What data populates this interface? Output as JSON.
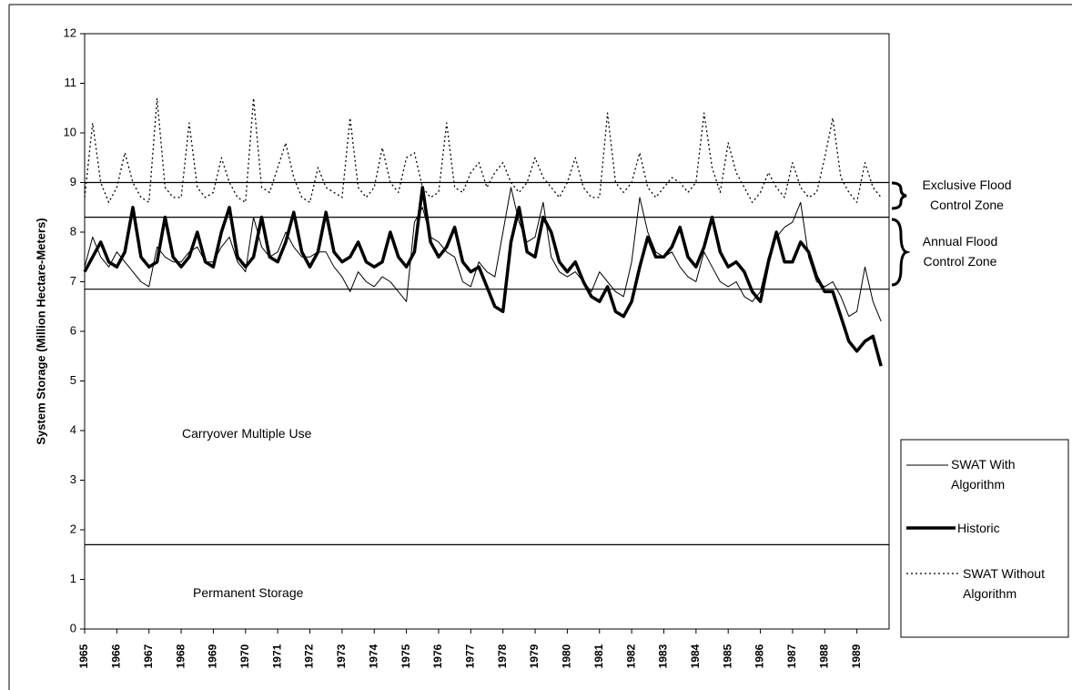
{
  "chart_data": {
    "type": "line",
    "y_label": "System Storage (Million Hectare-Meters)",
    "ylim": [
      0,
      12
    ],
    "yticks": [
      0,
      1,
      2,
      3,
      4,
      5,
      6,
      7,
      8,
      9,
      10,
      11,
      12
    ],
    "categories": [
      "1965",
      null,
      null,
      null,
      "1966",
      null,
      null,
      null,
      "1967",
      null,
      null,
      null,
      "1968",
      null,
      null,
      null,
      "1969",
      null,
      null,
      null,
      "1970",
      null,
      null,
      null,
      "1971",
      null,
      null,
      null,
      "1972",
      null,
      null,
      null,
      "1973",
      null,
      null,
      null,
      "1974",
      null,
      null,
      null,
      "1975",
      null,
      null,
      null,
      "1976",
      null,
      null,
      null,
      "1977",
      null,
      null,
      null,
      "1978",
      null,
      null,
      null,
      "1979",
      null,
      null,
      null,
      "1980",
      null,
      null,
      null,
      "1981",
      null,
      null,
      null,
      "1982",
      null,
      null,
      null,
      "1983",
      null,
      null,
      null,
      "1984",
      null,
      null,
      null,
      "1985",
      null,
      null,
      null,
      "1986",
      null,
      null,
      null,
      "1987",
      null,
      null,
      null,
      "1988",
      null,
      null,
      null,
      "1989",
      null,
      null,
      null
    ],
    "series": [
      {
        "name": "SWAT With Algorithm",
        "color": "#000000",
        "style": "thin",
        "values": [
          7.3,
          7.9,
          7.5,
          7.3,
          7.6,
          7.4,
          7.2,
          7.0,
          6.9,
          7.7,
          7.5,
          7.4,
          7.4,
          7.6,
          7.7,
          7.4,
          7.4,
          7.7,
          7.9,
          7.4,
          7.2,
          8.3,
          7.7,
          7.5,
          7.6,
          8.0,
          7.7,
          7.5,
          7.5,
          7.6,
          7.6,
          7.3,
          7.1,
          6.8,
          7.2,
          7.0,
          6.9,
          7.1,
          7.0,
          6.8,
          6.6,
          8.2,
          8.5,
          7.9,
          7.8,
          7.6,
          7.5,
          7.0,
          6.9,
          7.4,
          7.2,
          7.1,
          8.0,
          8.9,
          8.2,
          7.8,
          7.9,
          8.6,
          7.5,
          7.2,
          7.1,
          7.2,
          7.0,
          6.8,
          7.2,
          7.0,
          6.8,
          6.7,
          7.4,
          8.7,
          8.0,
          7.6,
          7.5,
          7.6,
          7.3,
          7.1,
          7.0,
          7.6,
          7.3,
          7.0,
          6.9,
          7.0,
          6.7,
          6.6,
          6.8,
          7.5,
          7.9,
          8.1,
          8.2,
          8.6,
          7.5,
          7.0,
          6.9,
          7.0,
          6.7,
          6.3,
          6.4,
          7.3,
          6.6,
          6.2
        ]
      },
      {
        "name": "Historic",
        "color": "#000000",
        "style": "thick",
        "values": [
          7.2,
          7.5,
          7.8,
          7.4,
          7.3,
          7.6,
          8.5,
          7.5,
          7.3,
          7.4,
          8.3,
          7.5,
          7.3,
          7.5,
          8.0,
          7.4,
          7.3,
          8.0,
          8.5,
          7.5,
          7.3,
          7.5,
          8.3,
          7.5,
          7.4,
          7.8,
          8.4,
          7.6,
          7.3,
          7.6,
          8.4,
          7.6,
          7.4,
          7.5,
          7.8,
          7.4,
          7.3,
          7.4,
          8.0,
          7.5,
          7.3,
          7.6,
          8.9,
          7.8,
          7.5,
          7.7,
          8.1,
          7.4,
          7.2,
          7.3,
          6.9,
          6.5,
          6.4,
          7.8,
          8.5,
          7.6,
          7.5,
          8.3,
          8.0,
          7.4,
          7.2,
          7.4,
          7.0,
          6.7,
          6.6,
          6.9,
          6.4,
          6.3,
          6.6,
          7.3,
          7.9,
          7.5,
          7.5,
          7.7,
          8.1,
          7.5,
          7.3,
          7.7,
          8.3,
          7.6,
          7.3,
          7.4,
          7.2,
          6.8,
          6.6,
          7.4,
          8.0,
          7.4,
          7.4,
          7.8,
          7.6,
          7.1,
          6.8,
          6.8,
          6.3,
          5.8,
          5.6,
          5.8,
          5.9,
          5.3
        ]
      },
      {
        "name": "SWAT Without Algorithm",
        "color": "#000000",
        "style": "dotted",
        "values": [
          8.7,
          10.2,
          9.0,
          8.6,
          8.9,
          9.6,
          9.0,
          8.7,
          8.6,
          10.7,
          8.9,
          8.7,
          8.7,
          10.2,
          8.9,
          8.7,
          8.8,
          9.5,
          9.0,
          8.7,
          8.6,
          10.7,
          8.9,
          8.8,
          9.3,
          9.8,
          9.1,
          8.7,
          8.6,
          9.3,
          8.9,
          8.8,
          8.7,
          10.3,
          8.9,
          8.7,
          8.9,
          9.7,
          9.0,
          8.8,
          9.5,
          9.6,
          8.9,
          8.7,
          8.8,
          10.2,
          8.9,
          8.8,
          9.2,
          9.4,
          8.9,
          9.2,
          9.4,
          9.0,
          8.8,
          9.0,
          9.5,
          9.1,
          8.9,
          8.7,
          9.0,
          9.5,
          8.9,
          8.7,
          8.7,
          10.4,
          9.0,
          8.8,
          9.0,
          9.6,
          8.9,
          8.7,
          8.9,
          9.1,
          9.0,
          8.8,
          9.0,
          10.4,
          9.3,
          8.8,
          9.8,
          9.2,
          8.9,
          8.6,
          8.8,
          9.2,
          8.9,
          8.7,
          9.4,
          8.9,
          8.7,
          8.8,
          9.5,
          10.3,
          9.1,
          8.8,
          8.6,
          9.4,
          8.9,
          8.7
        ]
      }
    ],
    "reference_lines": [
      9.0,
      8.3,
      6.85,
      1.7
    ],
    "annotations": [
      "Exclusive Flood Control Zone",
      "Annual Flood Control Zone",
      "Carryover Multiple Use",
      "Permanent Storage"
    ],
    "legend": "right"
  }
}
